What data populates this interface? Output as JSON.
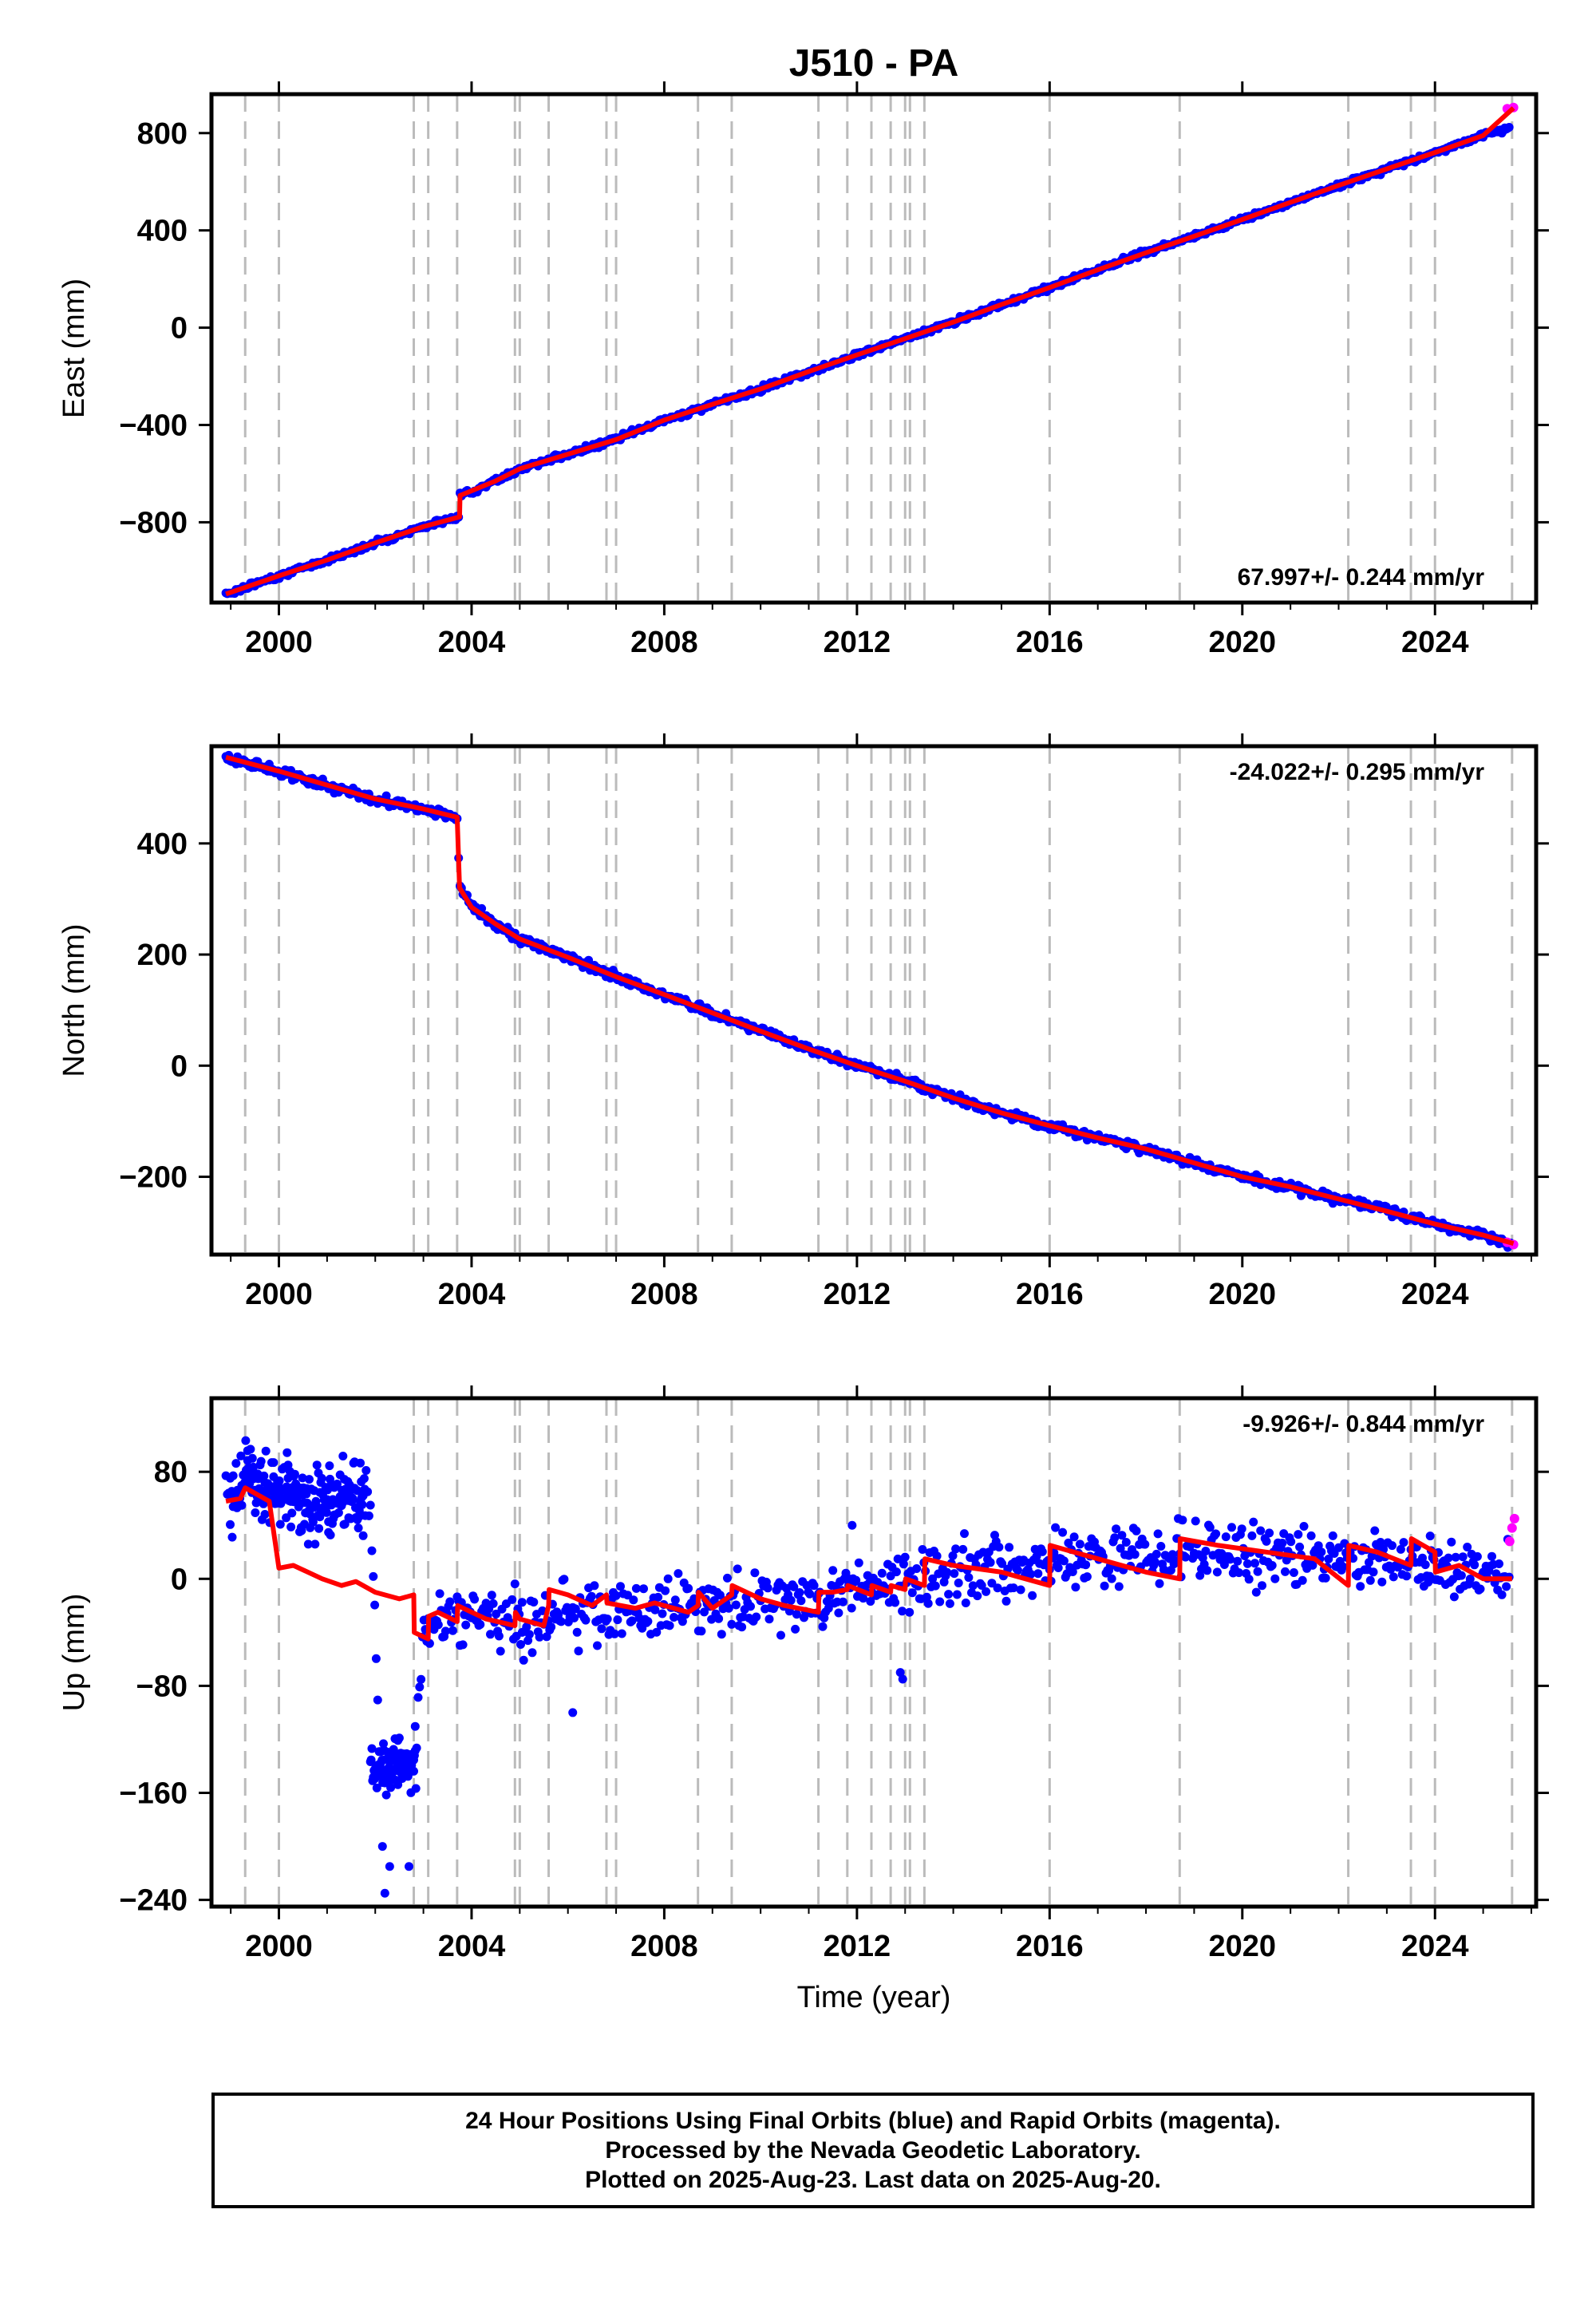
{
  "title": "J510 - PA",
  "xlabel": "Time (year)",
  "colors": {
    "final": "#0000ff",
    "rapid": "#ff00ff",
    "model": "#ff0000",
    "grid": "#bbbbbb",
    "axis": "#000000"
  },
  "footer": {
    "line1": "24 Hour Positions Using Final Orbits (blue) and Rapid Orbits (magenta).",
    "line2": "Processed by the Nevada Geodetic Laboratory.",
    "line3": "Plotted on 2025-Aug-23. Last data on 2025-Aug-20."
  },
  "chart_data": [
    {
      "type": "scatter",
      "name": "east",
      "ylabel": "East (mm)",
      "xlim": [
        1998.6,
        2026.1
      ],
      "ylim": [
        -1130,
        960
      ],
      "xticks": [
        2000,
        2004,
        2008,
        2012,
        2016,
        2020,
        2024
      ],
      "yticks": [
        -800,
        -400,
        0,
        400,
        800
      ],
      "ytick_labels": [
        "−800",
        "−400",
        "0",
        "400",
        "800"
      ],
      "rate_label": "67.997+/- 0.244 mm/yr",
      "rate_label_position": "bottom-right",
      "grid": "vertical dashed lines at equipment/event epochs",
      "event_lines": [
        1999.3,
        2000.0,
        2002.8,
        2003.1,
        2003.7,
        2004.9,
        2005.0,
        2005.6,
        2006.8,
        2007.0,
        2008.7,
        2009.4,
        2011.2,
        2011.8,
        2012.3,
        2012.7,
        2013.0,
        2013.1,
        2013.4,
        2016.0,
        2018.7,
        2022.2,
        2023.5,
        2024.0,
        2025.6
      ],
      "series": [
        {
          "name": "",
          "style": "final",
          "x": [
            1998.9,
            2000.0,
            2001.0,
            2002.0,
            2003.0,
            2003.75,
            2003.76,
            2004.5,
            2005.0,
            2006.0,
            2007.0,
            2008.0,
            2009.0,
            2010.0,
            2011.0,
            2012.0,
            2013.0,
            2014.0,
            2015.0,
            2016.0,
            2017.0,
            2018.0,
            2019.0,
            2020.0,
            2021.0,
            2022.0,
            2023.0,
            2024.0,
            2025.0,
            2025.55
          ],
          "y": [
            -1095,
            -1020,
            -955,
            -885,
            -818,
            -778,
            -690,
            -630,
            -580,
            -520,
            -460,
            -380,
            -315,
            -252,
            -180,
            -112,
            -45,
            23,
            95,
            165,
            238,
            308,
            376,
            445,
            515,
            585,
            653,
            720,
            790,
            823
          ]
        },
        {
          "name": "",
          "style": "rapid",
          "x": [
            2025.5,
            2025.63
          ],
          "y": [
            900,
            905
          ]
        }
      ],
      "model": {
        "x": [
          1998.9,
          2000.0,
          2001.0,
          2002.0,
          2003.0,
          2003.75,
          2003.76,
          2004.5,
          2005.0,
          2006.0,
          2007.0,
          2008.0,
          2009.0,
          2010.0,
          2011.0,
          2012.0,
          2013.0,
          2014.0,
          2015.0,
          2016.0,
          2017.0,
          2018.0,
          2019.0,
          2020.0,
          2021.0,
          2022.0,
          2023.0,
          2024.0,
          2025.0,
          2025.63
        ],
        "y": [
          -1095,
          -1020,
          -955,
          -885,
          -818,
          -778,
          -690,
          -630,
          -580,
          -520,
          -460,
          -380,
          -315,
          -252,
          -180,
          -112,
          -45,
          23,
          95,
          165,
          238,
          308,
          376,
          445,
          515,
          585,
          653,
          720,
          790,
          903
        ]
      }
    },
    {
      "type": "scatter",
      "name": "north",
      "ylabel": "North (mm)",
      "xlim": [
        1998.6,
        2026.1
      ],
      "ylim": [
        -340,
        575
      ],
      "xticks": [
        2000,
        2004,
        2008,
        2012,
        2016,
        2020,
        2024
      ],
      "yticks": [
        -200,
        0,
        200,
        400
      ],
      "ytick_labels": [
        "−200",
        "0",
        "200",
        "400"
      ],
      "rate_label": "-24.022+/- 0.295 mm/yr",
      "rate_label_position": "top-right",
      "grid": "vertical dashed lines at equipment/event epochs",
      "event_lines": [
        1999.3,
        2000.0,
        2002.8,
        2003.1,
        2003.7,
        2004.9,
        2005.0,
        2005.6,
        2006.8,
        2007.0,
        2008.7,
        2009.4,
        2011.2,
        2011.8,
        2012.3,
        2012.7,
        2013.0,
        2013.1,
        2013.4,
        2016.0,
        2018.7,
        2022.2,
        2023.5,
        2024.0,
        2025.6
      ],
      "series": [
        {
          "name": "",
          "style": "final",
          "x": [
            1998.9,
            2000.0,
            2001.0,
            2002.0,
            2003.0,
            2003.7,
            2003.75,
            2004.0,
            2004.5,
            2005.0,
            2006.0,
            2007.0,
            2008.0,
            2009.0,
            2010.0,
            2011.0,
            2012.0,
            2013.0,
            2014.0,
            2015.0,
            2016.0,
            2017.0,
            2018.0,
            2019.0,
            2020.0,
            2021.0,
            2022.0,
            2023.0,
            2024.0,
            2025.0,
            2025.6
          ],
          "y": [
            555,
            530,
            505,
            480,
            462,
            447,
            320,
            285,
            255,
            228,
            195,
            160,
            128,
            95,
            62,
            30,
            0,
            -28,
            -58,
            -85,
            -108,
            -130,
            -150,
            -175,
            -200,
            -218,
            -240,
            -262,
            -285,
            -305,
            -322
          ]
        },
        {
          "name": "",
          "style": "rapid",
          "x": [
            2025.5,
            2025.63
          ],
          "y": [
            -318,
            -322
          ]
        }
      ],
      "model": {
        "x": [
          1998.9,
          2000.0,
          2001.0,
          2002.0,
          2003.0,
          2003.7,
          2003.75,
          2004.0,
          2004.5,
          2005.0,
          2006.0,
          2007.0,
          2008.0,
          2009.0,
          2010.0,
          2011.0,
          2012.0,
          2013.0,
          2014.0,
          2015.0,
          2016.0,
          2017.0,
          2018.0,
          2019.0,
          2020.0,
          2021.0,
          2022.0,
          2023.0,
          2024.0,
          2025.0,
          2025.63
        ],
        "y": [
          555,
          530,
          505,
          480,
          462,
          447,
          320,
          285,
          255,
          228,
          195,
          160,
          128,
          95,
          62,
          30,
          0,
          -28,
          -58,
          -85,
          -108,
          -130,
          -150,
          -175,
          -200,
          -218,
          -240,
          -262,
          -285,
          -305,
          -320
        ]
      }
    },
    {
      "type": "scatter",
      "name": "up",
      "ylabel": "Up (mm)",
      "xlim": [
        1998.6,
        2026.1
      ],
      "ylim": [
        -245,
        135
      ],
      "xticks": [
        2000,
        2004,
        2008,
        2012,
        2016,
        2020,
        2024
      ],
      "yticks": [
        -240,
        -160,
        -80,
        0,
        80
      ],
      "ytick_labels": [
        "−240",
        "−160",
        "−80",
        "0",
        "80"
      ],
      "rate_label": "-9.926+/- 0.844 mm/yr",
      "rate_label_position": "top-right",
      "grid": "vertical dashed lines at equipment/event epochs",
      "event_lines": [
        1999.3,
        2000.0,
        2002.8,
        2003.1,
        2003.7,
        2004.9,
        2005.0,
        2005.6,
        2006.8,
        2007.0,
        2008.7,
        2009.4,
        2011.2,
        2011.8,
        2012.3,
        2012.7,
        2013.0,
        2013.1,
        2013.4,
        2016.0,
        2018.7,
        2022.2,
        2023.5,
        2024.0,
        2025.6
      ],
      "series": [
        {
          "name": "",
          "style": "final",
          "x": [
            1998.9,
            1999.2,
            1999.5,
            1999.8,
            2000.2,
            2000.6,
            2001.0,
            2001.4,
            2001.7,
            2001.9,
            2002.1,
            2002.3,
            2002.6,
            2002.8,
            2003.0,
            2003.5,
            2004.0,
            2004.5,
            2005.0,
            2006.0,
            2007.0,
            2008.0,
            2009.0,
            2010.0,
            2011.0,
            2012.0,
            2013.0,
            2014.0,
            2015.0,
            2016.0,
            2017.0,
            2018.0,
            2019.0,
            2020.0,
            2021.0,
            2022.0,
            2023.0,
            2024.0,
            2025.0,
            2025.55
          ],
          "y": [
            55,
            70,
            75,
            60,
            65,
            55,
            55,
            60,
            58,
            55,
            -140,
            -145,
            -142,
            -148,
            -30,
            -32,
            -35,
            -30,
            -32,
            -25,
            -25,
            -22,
            -22,
            -18,
            -15,
            -8,
            -2,
            5,
            8,
            12,
            15,
            18,
            20,
            18,
            15,
            15,
            12,
            8,
            5,
            5
          ]
        },
        {
          "name": "",
          "style": "rapid",
          "x": [
            2025.55,
            2025.6,
            2025.65
          ],
          "y": [
            28,
            38,
            45
          ]
        }
      ],
      "outliers": {
        "x": [
          2002.15,
          2002.3,
          2002.2,
          2002.7,
          2005.05,
          2006.1,
          2011.9,
          2012.9,
          2012.95,
          2023.9
        ],
        "y": [
          -200,
          -215,
          -235,
          -215,
          -40,
          -100,
          40,
          -70,
          -75,
          32
        ]
      },
      "model": {
        "x": [
          1998.9,
          1999.2,
          1999.3,
          1999.8,
          2000.0,
          2000.3,
          2000.9,
          2001.3,
          2001.6,
          2002.0,
          2002.5,
          2002.8,
          2002.81,
          2003.1,
          2003.11,
          2003.3,
          2003.7,
          2003.71,
          2004.3,
          2004.9,
          2004.91,
          2005.0,
          2005.5,
          2005.6,
          2005.61,
          2006.0,
          2006.5,
          2006.8,
          2006.81,
          2007.4,
          2007.8,
          2008.5,
          2008.7,
          2008.71,
          2009.0,
          2009.4,
          2009.41,
          2010.0,
          2010.5,
          2011.2,
          2011.21,
          2011.5,
          2011.8,
          2011.81,
          2012.3,
          2012.31,
          2012.7,
          2012.71,
          2013.0,
          2013.01,
          2013.4,
          2013.41,
          2014.0,
          2015.0,
          2016.0,
          2016.01,
          2016.5,
          2017.0,
          2018.0,
          2018.7,
          2018.71,
          2019.5,
          2020.5,
          2021.5,
          2022.2,
          2022.21,
          2022.8,
          2023.5,
          2023.51,
          2024.0,
          2024.01,
          2024.5,
          2025.0,
          2025.6
        ],
        "y": [
          58,
          60,
          68,
          58,
          8,
          10,
          0,
          -5,
          -2,
          -10,
          -15,
          -12,
          -40,
          -45,
          -28,
          -25,
          -32,
          -20,
          -30,
          -35,
          -25,
          -30,
          -35,
          -20,
          -8,
          -12,
          -20,
          -12,
          -18,
          -22,
          -18,
          -25,
          -20,
          -10,
          -22,
          -12,
          -5,
          -15,
          -20,
          -25,
          -10,
          -10,
          -8,
          -5,
          -12,
          -5,
          -10,
          -5,
          -8,
          0,
          -5,
          15,
          10,
          5,
          -5,
          25,
          20,
          15,
          5,
          0,
          30,
          25,
          20,
          15,
          -5,
          25,
          20,
          10,
          30,
          20,
          5,
          10,
          0,
          0
        ]
      }
    }
  ]
}
